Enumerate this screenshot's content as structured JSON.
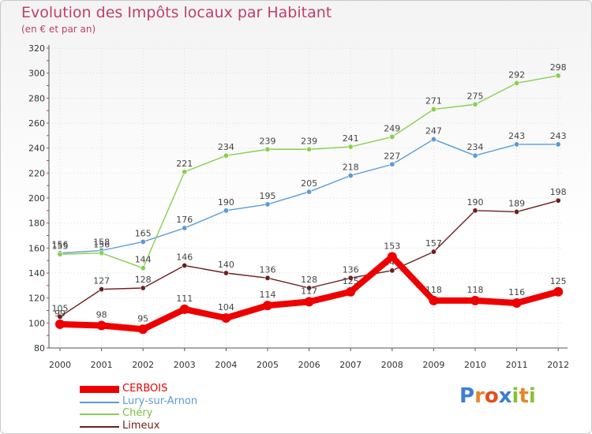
{
  "header": {
    "title": "Evolution des Impôts locaux par Habitant",
    "subtitle": "(en € et par an)"
  },
  "brand": {
    "letters": [
      "P",
      "r",
      "o",
      "x",
      "i",
      "t",
      "i"
    ],
    "colors": [
      "#3d7fd1",
      "#e8862a",
      "#e84b1a",
      "#3d7fd1",
      "#88c13a",
      "#e8862a",
      "#88c13a"
    ]
  },
  "colors": {
    "title": "#c0406a",
    "axis": "#555555",
    "grid": "#dddddd"
  },
  "chart_data": {
    "type": "line",
    "title": "Evolution des Impôts locaux par Habitant",
    "subtitle": "(en € et par an)",
    "xlabel": "",
    "ylabel": "",
    "categories": [
      "2000",
      "2001",
      "2002",
      "2003",
      "2004",
      "2005",
      "2006",
      "2007",
      "2008",
      "2009",
      "2010",
      "2011",
      "2012"
    ],
    "ylim": [
      80,
      320
    ],
    "yticks": [
      80,
      100,
      120,
      140,
      160,
      180,
      200,
      220,
      240,
      260,
      280,
      300,
      320
    ],
    "legend_position": "bottom-left",
    "series": [
      {
        "name": "CERBOIS",
        "color": "#ee0000",
        "emphasis": true,
        "values": [
          99,
          98,
          95,
          111,
          104,
          114,
          117,
          125,
          153,
          118,
          118,
          116,
          125
        ]
      },
      {
        "name": "Lury-sur-Arnon",
        "color": "#5b9bd5",
        "emphasis": false,
        "values": [
          156,
          158,
          165,
          176,
          190,
          195,
          205,
          218,
          227,
          247,
          234,
          243,
          243
        ]
      },
      {
        "name": "Chéry",
        "color": "#88d050",
        "emphasis": false,
        "values": [
          155,
          156,
          144,
          221,
          234,
          239,
          239,
          241,
          249,
          271,
          275,
          292,
          298
        ]
      },
      {
        "name": "Limeux",
        "color": "#6e1e1e",
        "emphasis": false,
        "values": [
          105,
          127,
          128,
          146,
          140,
          136,
          128,
          136,
          142,
          157,
          190,
          189,
          198
        ]
      }
    ]
  }
}
